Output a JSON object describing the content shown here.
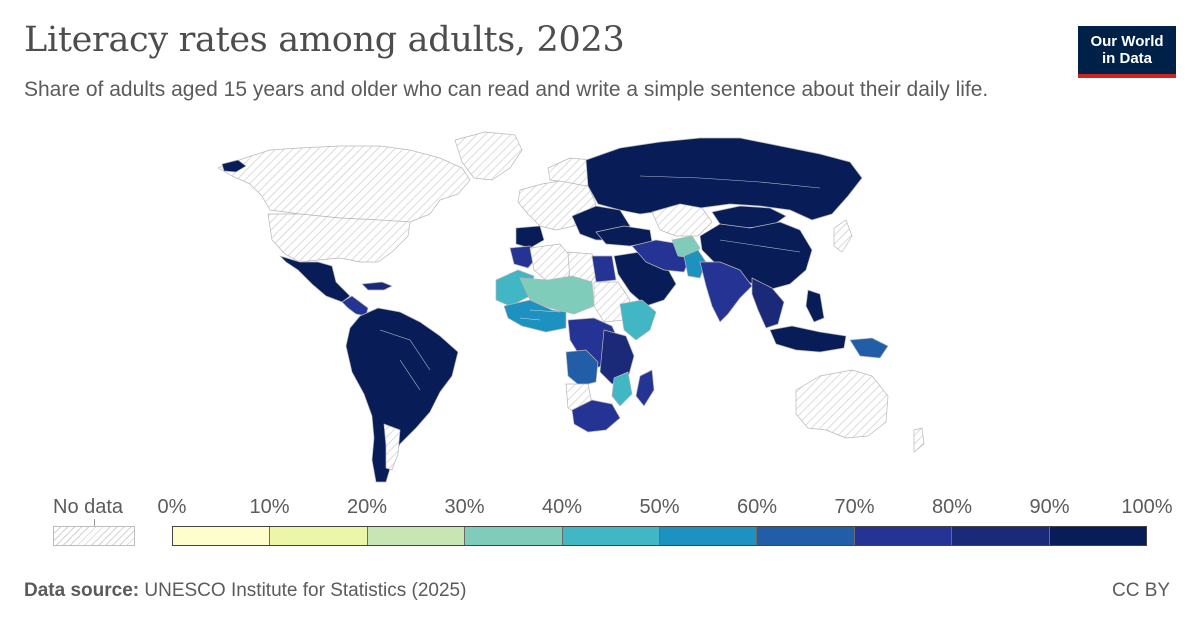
{
  "title": "Literacy rates among adults, 2023",
  "subtitle": "Share of adults aged 15 years and older who can read and write a simple sentence about their daily life.",
  "logo": {
    "line1": "Our World",
    "line2": "in Data"
  },
  "legend": {
    "no_data_label": "No data",
    "ticks": [
      "0%",
      "10%",
      "20%",
      "30%",
      "40%",
      "50%",
      "60%",
      "70%",
      "80%",
      "90%",
      "100%"
    ],
    "colors": [
      "#fefecc",
      "#ebf6a9",
      "#c7e6b4",
      "#7fccbb",
      "#41b6c4",
      "#1d91c0",
      "#225ea8",
      "#253494",
      "#1a2a78",
      "#081d58"
    ]
  },
  "footer": {
    "source_label": "Data source:",
    "source_text": "UNESCO Institute for Statistics (2025)",
    "license": "CC BY"
  },
  "map_data": {
    "regions": [
      {
        "name": "Canada & Alaska",
        "value": null
      },
      {
        "name": "United States",
        "value": null
      },
      {
        "name": "Greenland",
        "value": null
      },
      {
        "name": "Mexico",
        "value": "90-100%"
      },
      {
        "name": "Central America",
        "value": "80-100%"
      },
      {
        "name": "South America (north & Brazil)",
        "value": "90-100%"
      },
      {
        "name": "Argentina & Chile",
        "value": "90-100%"
      },
      {
        "name": "Western Europe",
        "value": null
      },
      {
        "name": "Southern & Eastern Europe",
        "value": "90-100%"
      },
      {
        "name": "Russia",
        "value": "90-100%"
      },
      {
        "name": "Kazakhstan",
        "value": null
      },
      {
        "name": "China",
        "value": "90-100%"
      },
      {
        "name": "Mongolia",
        "value": "90-100%"
      },
      {
        "name": "Middle East",
        "value": "90-100%"
      },
      {
        "name": "Iran & Iraq",
        "value": "80-100%"
      },
      {
        "name": "Afghanistan",
        "value": "30-40%"
      },
      {
        "name": "Pakistan",
        "value": "50-60%"
      },
      {
        "name": "India",
        "value": "70-80%"
      },
      {
        "name": "Southeast Asia",
        "value": "80-100%"
      },
      {
        "name": "Indonesia",
        "value": "90-100%"
      },
      {
        "name": "Papua New Guinea",
        "value": "60-70%"
      },
      {
        "name": "Australia",
        "value": null
      },
      {
        "name": "Morocco & Maghreb",
        "value": "70-90%"
      },
      {
        "name": "Libya",
        "value": null
      },
      {
        "name": "Egypt",
        "value": "70-80%"
      },
      {
        "name": "Sahel (Mali, Niger, Chad)",
        "value": "30-40%"
      },
      {
        "name": "Sudan",
        "value": null
      },
      {
        "name": "Ethiopia & Somalia",
        "value": "40-60%"
      },
      {
        "name": "West Africa coast",
        "value": "40-70%"
      },
      {
        "name": "Central Africa",
        "value": "70-80%"
      },
      {
        "name": "DR Congo",
        "value": "60-70%"
      },
      {
        "name": "East Africa",
        "value": "70-90%"
      },
      {
        "name": "Angola",
        "value": null
      },
      {
        "name": "Southern Africa",
        "value": "80-90%"
      },
      {
        "name": "Madagascar",
        "value": "70-80%"
      }
    ]
  }
}
